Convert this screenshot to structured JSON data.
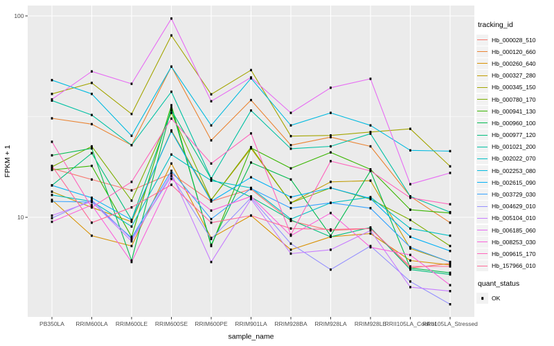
{
  "figure": {
    "x_axis_label": "sample_name",
    "y_axis_label": "FPKM + 1",
    "y_tick_labels": [
      "100",
      "10"
    ]
  },
  "legend": {
    "tracking_title": "tracking_id",
    "quant_title": "quant_status",
    "quant_items": [
      {
        "label": "OK",
        "marker": "black-square"
      }
    ]
  },
  "colors": {
    "panel_bg": "#EBEBEB",
    "grid_major": "#FFFFFF",
    "grid_minor": "#F7F7F7",
    "tick_text": "#4D4D4D",
    "axis_title_text": "#000000",
    "point": "#000000",
    "legend_key_bg": "#F2F2F2"
  },
  "chart_data": {
    "type": "line",
    "title": "",
    "xlabel": "sample_name",
    "ylabel": "FPKM + 1",
    "y_scale": "log10",
    "ylim": [
      3.2,
      112
    ],
    "y_major_ticks": [
      10,
      100
    ],
    "y_minor_ticks": [
      31.62
    ],
    "grid": true,
    "legend_position": "right",
    "point_marker": {
      "shape": "square",
      "color": "#000000",
      "meaning": "quant_status OK"
    },
    "categories": [
      "PB350LA",
      "RRIM600LA",
      "RRIM600LE",
      "RRIM600SE",
      "RRIM600PE",
      "RRIM901LA",
      "RRIM928BA",
      "RRIM928LA",
      "RRIM928LE",
      "RRII105LA_Control",
      "RRII105LA_Stressed"
    ],
    "series": [
      {
        "name": "Hb_000028_510",
        "color": "#F8766D",
        "values": [
          17.5,
          15.4,
          13.6,
          16.5,
          12.0,
          13.8,
          9.6,
          8.6,
          8.8,
          5.6,
          5.9
        ]
      },
      {
        "name": "Hb_000120_660",
        "color": "#EA8331",
        "values": [
          31.0,
          29.0,
          22.8,
          56.0,
          24.1,
          38.2,
          22.8,
          25.0,
          22.5,
          12.7,
          9.4
        ]
      },
      {
        "name": "Hb_000260_640",
        "color": "#D89000",
        "values": [
          12.2,
          8.1,
          7.2,
          18.5,
          7.9,
          10.2,
          6.9,
          8.0,
          8.3,
          6.1,
          5.8
        ]
      },
      {
        "name": "Hb_000327_280",
        "color": "#C09B00",
        "values": [
          13.4,
          11.2,
          9.5,
          27.0,
          12.2,
          22.0,
          11.8,
          15.0,
          15.2,
          7.0,
          6.0
        ]
      },
      {
        "name": "Hb_000345_150",
        "color": "#A3A500",
        "values": [
          41.0,
          46.5,
          32.6,
          80.0,
          40.8,
          53.8,
          25.3,
          25.5,
          26.5,
          27.5,
          17.9
        ]
      },
      {
        "name": "Hb_000780_170",
        "color": "#7CAE00",
        "values": [
          17.8,
          22.5,
          12.1,
          33.0,
          12.2,
          22.3,
          11.8,
          14.0,
          12.3,
          9.7,
          7.2
        ]
      },
      {
        "name": "Hb_000941_130",
        "color": "#39B600",
        "values": [
          17.2,
          18.0,
          8.0,
          36.0,
          7.2,
          22.1,
          17.5,
          21.0,
          17.3,
          10.9,
          10.5
        ]
      },
      {
        "name": "Hb_000960_100",
        "color": "#00BB4E",
        "values": [
          20.3,
          22.0,
          6.1,
          35.0,
          7.3,
          18.7,
          15.4,
          8.1,
          17.0,
          5.6,
          5.3
        ]
      },
      {
        "name": "Hb_000977_120",
        "color": "#00BF7D",
        "values": [
          14.4,
          20.8,
          9.7,
          34.0,
          15.5,
          12.6,
          9.7,
          8.0,
          8.9,
          5.5,
          5.2
        ]
      },
      {
        "name": "Hb_001021_200",
        "color": "#00C1A3",
        "values": [
          38.0,
          32.2,
          22.8,
          42.0,
          15.6,
          33.9,
          21.9,
          22.5,
          26.0,
          12.7,
          10.6
        ]
      },
      {
        "name": "Hb_002022_070",
        "color": "#00BFC4",
        "values": [
          12.9,
          12.0,
          9.0,
          20.5,
          15.2,
          14.0,
          9.8,
          11.8,
          12.6,
          8.8,
          8.1
        ]
      },
      {
        "name": "Hb_002253_080",
        "color": "#00BAE0",
        "values": [
          48.0,
          41.0,
          25.4,
          56.0,
          28.6,
          49.0,
          28.6,
          33.0,
          28.6,
          21.5,
          21.3
        ]
      },
      {
        "name": "Hb_002615_090",
        "color": "#00B0F6",
        "values": [
          14.4,
          12.5,
          9.7,
          26.7,
          12.0,
          15.8,
          12.6,
          14.0,
          12.4,
          8.0,
          6.8
        ]
      },
      {
        "name": "Hb_003729_030",
        "color": "#35A2FF",
        "values": [
          12.0,
          11.9,
          7.9,
          17.0,
          9.8,
          13.9,
          11.1,
          11.8,
          11.1,
          7.1,
          6.0
        ]
      },
      {
        "name": "Hb_004629_010",
        "color": "#9590FF",
        "values": [
          9.9,
          12.2,
          7.8,
          16.0,
          7.8,
          12.5,
          7.4,
          5.5,
          7.2,
          4.8,
          3.7
        ]
      },
      {
        "name": "Hb_005104_010",
        "color": "#C77CFF",
        "values": [
          10.2,
          12.0,
          7.6,
          16.5,
          6.0,
          12.3,
          6.6,
          6.9,
          8.6,
          4.5,
          4.3
        ]
      },
      {
        "name": "Hb_006185_060",
        "color": "#E76BF3",
        "values": [
          38.5,
          53.0,
          46.0,
          97.0,
          37.7,
          49.5,
          33.0,
          44.0,
          48.7,
          14.6,
          16.6
        ]
      },
      {
        "name": "Hb_008253_030",
        "color": "#FA62DB",
        "values": [
          9.5,
          11.5,
          6.0,
          15.5,
          10.8,
          12.7,
          8.1,
          10.5,
          7.1,
          6.5,
          4.6
        ]
      },
      {
        "name": "Hb_009615_170",
        "color": "#FF62BC",
        "values": [
          23.7,
          11.2,
          15.0,
          30.9,
          18.5,
          26.1,
          8.2,
          19.0,
          17.0,
          12.5,
          11.6
        ]
      },
      {
        "name": "Hb_157966_010",
        "color": "#FF6A98",
        "values": [
          18.0,
          9.4,
          11.2,
          14.5,
          9.4,
          10.2,
          8.8,
          8.7,
          8.8,
          5.7,
          5.7
        ]
      }
    ]
  }
}
